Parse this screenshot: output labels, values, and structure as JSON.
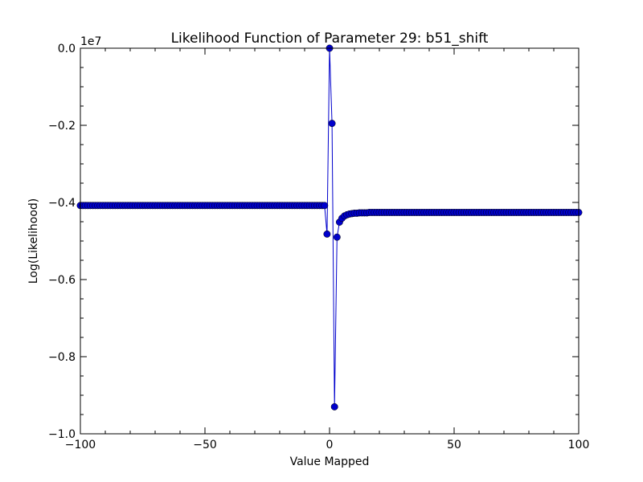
{
  "chart_data": {
    "type": "line",
    "title": "Likelihood Function of Parameter 29: b51_shift",
    "xlabel": "Value Mapped",
    "ylabel": "Log(Likelihood)",
    "y_offset_label": "1e7",
    "xlim": [
      -100,
      100
    ],
    "ylim": [
      -1.0,
      0.0
    ],
    "y_scale_factor": 10000000,
    "xticks": [
      -100,
      -50,
      0,
      50,
      100
    ],
    "xtick_labels": [
      "−100",
      "−50",
      "0",
      "50",
      "100"
    ],
    "yticks": [
      0.0,
      -0.2,
      -0.4,
      -0.6,
      -0.8,
      -1.0
    ],
    "ytick_labels": [
      "0.0",
      "−0.2",
      "−0.4",
      "−0.6",
      "−0.8",
      "−1.0"
    ],
    "grid": false,
    "series": [
      {
        "color": "#0000cc",
        "marker": "circle",
        "x": [
          -100,
          -99,
          -98,
          -97,
          -96,
          -95,
          -94,
          -93,
          -92,
          -91,
          -90,
          -89,
          -88,
          -87,
          -86,
          -85,
          -84,
          -83,
          -82,
          -81,
          -80,
          -79,
          -78,
          -77,
          -76,
          -75,
          -74,
          -73,
          -72,
          -71,
          -70,
          -69,
          -68,
          -67,
          -66,
          -65,
          -64,
          -63,
          -62,
          -61,
          -60,
          -59,
          -58,
          -57,
          -56,
          -55,
          -54,
          -53,
          -52,
          -51,
          -50,
          -49,
          -48,
          -47,
          -46,
          -45,
          -44,
          -43,
          -42,
          -41,
          -40,
          -39,
          -38,
          -37,
          -36,
          -35,
          -34,
          -33,
          -32,
          -31,
          -30,
          -29,
          -28,
          -27,
          -26,
          -25,
          -24,
          -23,
          -22,
          -21,
          -20,
          -19,
          -18,
          -17,
          -16,
          -15,
          -14,
          -13,
          -12,
          -11,
          -10,
          -9,
          -8,
          -7,
          -6,
          -5,
          -4,
          -3,
          -2,
          -1,
          0,
          1,
          2,
          3,
          4,
          5,
          6,
          7,
          8,
          9,
          10,
          11,
          12,
          13,
          14,
          15,
          16,
          17,
          18,
          19,
          20,
          21,
          22,
          23,
          24,
          25,
          26,
          27,
          28,
          29,
          30,
          31,
          32,
          33,
          34,
          35,
          36,
          37,
          38,
          39,
          40,
          41,
          42,
          43,
          44,
          45,
          46,
          47,
          48,
          49,
          50,
          51,
          52,
          53,
          54,
          55,
          56,
          57,
          58,
          59,
          60,
          61,
          62,
          63,
          64,
          65,
          66,
          67,
          68,
          69,
          70,
          71,
          72,
          73,
          74,
          75,
          76,
          77,
          78,
          79,
          80,
          81,
          82,
          83,
          84,
          85,
          86,
          87,
          88,
          89,
          90,
          91,
          92,
          93,
          94,
          95,
          96,
          97,
          98,
          99,
          100
        ],
        "y": [
          -0.408,
          -0.408,
          -0.408,
          -0.408,
          -0.408,
          -0.408,
          -0.408,
          -0.408,
          -0.408,
          -0.408,
          -0.408,
          -0.408,
          -0.408,
          -0.408,
          -0.408,
          -0.408,
          -0.408,
          -0.408,
          -0.408,
          -0.408,
          -0.408,
          -0.408,
          -0.408,
          -0.408,
          -0.408,
          -0.408,
          -0.408,
          -0.408,
          -0.408,
          -0.408,
          -0.408,
          -0.408,
          -0.408,
          -0.408,
          -0.408,
          -0.408,
          -0.408,
          -0.408,
          -0.408,
          -0.408,
          -0.408,
          -0.408,
          -0.408,
          -0.408,
          -0.408,
          -0.408,
          -0.408,
          -0.408,
          -0.408,
          -0.408,
          -0.408,
          -0.408,
          -0.408,
          -0.408,
          -0.408,
          -0.408,
          -0.408,
          -0.408,
          -0.408,
          -0.408,
          -0.408,
          -0.408,
          -0.408,
          -0.408,
          -0.408,
          -0.408,
          -0.408,
          -0.408,
          -0.408,
          -0.408,
          -0.408,
          -0.408,
          -0.408,
          -0.408,
          -0.408,
          -0.408,
          -0.408,
          -0.408,
          -0.408,
          -0.408,
          -0.408,
          -0.408,
          -0.408,
          -0.408,
          -0.408,
          -0.408,
          -0.408,
          -0.408,
          -0.408,
          -0.408,
          -0.408,
          -0.408,
          -0.408,
          -0.408,
          -0.408,
          -0.408,
          -0.408,
          -0.408,
          -0.408,
          -0.482,
          0.0,
          -0.195,
          -0.93,
          -0.49,
          -0.451,
          -0.441,
          -0.435,
          -0.432,
          -0.43,
          -0.429,
          -0.428,
          -0.428,
          -0.427,
          -0.427,
          -0.427,
          -0.427,
          -0.426,
          -0.426,
          -0.426,
          -0.426,
          -0.426,
          -0.426,
          -0.426,
          -0.426,
          -0.426,
          -0.426,
          -0.426,
          -0.426,
          -0.426,
          -0.426,
          -0.426,
          -0.426,
          -0.426,
          -0.426,
          -0.426,
          -0.426,
          -0.426,
          -0.426,
          -0.426,
          -0.426,
          -0.426,
          -0.426,
          -0.426,
          -0.426,
          -0.426,
          -0.426,
          -0.426,
          -0.426,
          -0.426,
          -0.426,
          -0.426,
          -0.426,
          -0.426,
          -0.426,
          -0.426,
          -0.426,
          -0.426,
          -0.426,
          -0.426,
          -0.426,
          -0.426,
          -0.426,
          -0.426,
          -0.426,
          -0.426,
          -0.426,
          -0.426,
          -0.426,
          -0.426,
          -0.426,
          -0.426,
          -0.426,
          -0.426,
          -0.426,
          -0.426,
          -0.426,
          -0.426,
          -0.426,
          -0.426,
          -0.426,
          -0.426,
          -0.426,
          -0.426,
          -0.426,
          -0.426,
          -0.426,
          -0.426,
          -0.426,
          -0.426,
          -0.426,
          -0.426,
          -0.426,
          -0.426,
          -0.426,
          -0.426,
          -0.426,
          -0.426,
          -0.426,
          -0.426,
          -0.426,
          -0.426
        ]
      }
    ]
  }
}
